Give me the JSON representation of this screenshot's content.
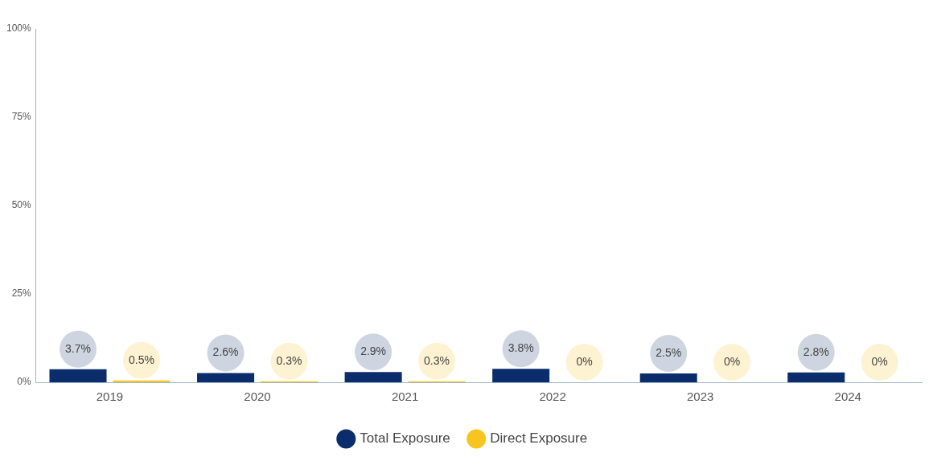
{
  "chart_data": {
    "type": "bar",
    "categories": [
      "2019",
      "2020",
      "2021",
      "2022",
      "2023",
      "2024"
    ],
    "series": [
      {
        "name": "Total Exposure",
        "color": "#0b2d6b",
        "values": [
          3.7,
          2.6,
          2.9,
          3.8,
          2.5,
          2.8
        ],
        "value_labels": [
          "3.7%",
          "2.6%",
          "2.9%",
          "3.8%",
          "2.5%",
          "2.8%"
        ]
      },
      {
        "name": "Direct Exposure",
        "color": "#f7c51e",
        "values": [
          0.5,
          0.3,
          0.3,
          0,
          0,
          0
        ],
        "value_labels": [
          "0.5%",
          "0.3%",
          "0.3%",
          "0%",
          "0%",
          "0%"
        ]
      }
    ],
    "ylim": [
      0,
      100
    ],
    "yticks": [
      {
        "value": 0,
        "label": "0%"
      },
      {
        "value": 25,
        "label": "25%"
      },
      {
        "value": 50,
        "label": "50%"
      },
      {
        "value": 75,
        "label": "75%"
      },
      {
        "value": 100,
        "label": "100%"
      }
    ],
    "grid": false,
    "legend": "bottom",
    "data_labels": true
  }
}
